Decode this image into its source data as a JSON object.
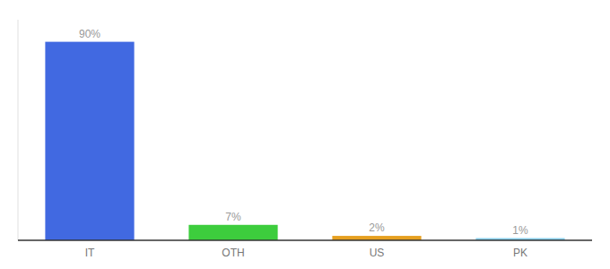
{
  "chart_data": {
    "type": "bar",
    "categories": [
      "IT",
      "OTH",
      "US",
      "PK"
    ],
    "values": [
      90,
      7,
      2,
      1
    ],
    "value_labels": [
      "90%",
      "7%",
      "2%",
      "1%"
    ],
    "colors": [
      "#4169e1",
      "#3dcd3d",
      "#e6a020",
      "#87ceeb"
    ],
    "ylim": [
      0,
      100
    ],
    "data_labels": true,
    "tick_labels": "x"
  }
}
